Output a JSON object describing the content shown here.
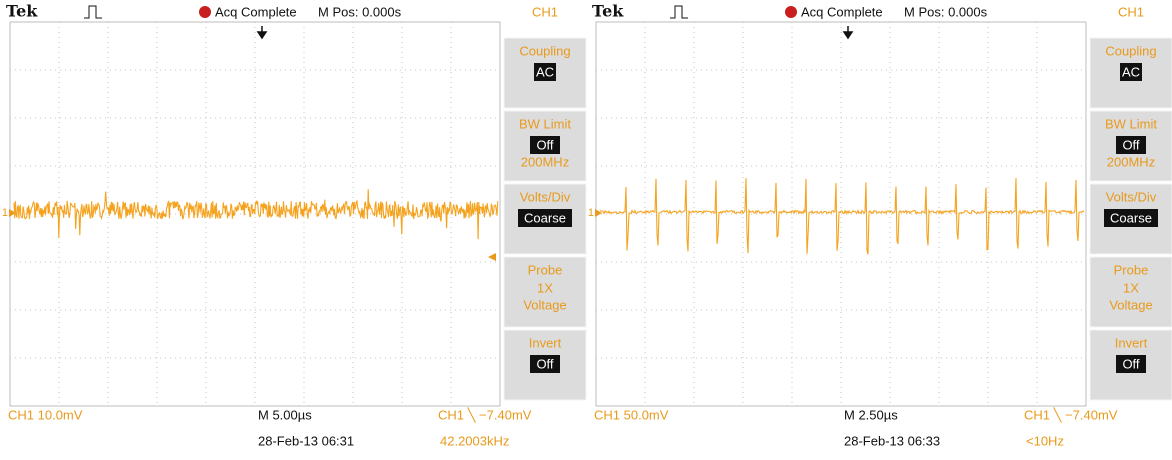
{
  "panels": [
    {
      "header": {
        "brand": "Tek",
        "status": "Acq Complete",
        "position": "M Pos: 0.000s",
        "channel": "CH1"
      },
      "channel_marker": "1",
      "menu": [
        {
          "label": "Coupling",
          "value": "AC"
        },
        {
          "label": "BW Limit",
          "value": "Off",
          "extra": [
            "200MHz"
          ]
        },
        {
          "label": "Volts/Div",
          "value": "Coarse"
        },
        {
          "label": "Probe",
          "extra": [
            "1X",
            "Voltage"
          ]
        },
        {
          "label": "Invert",
          "value": "Off"
        }
      ],
      "footer": {
        "scale": "CH1  10.0mV",
        "timebase": "M 5.00µs",
        "trigger": "CH1 ╲ −7.40mV",
        "date": "28-Feb-13 06:31",
        "frequency": "42.2003kHz"
      }
    },
    {
      "header": {
        "brand": "Tek",
        "status": "Acq Complete",
        "position": "M Pos: 0.000s",
        "channel": "CH1"
      },
      "channel_marker": "1",
      "menu": [
        {
          "label": "Coupling",
          "value": "AC"
        },
        {
          "label": "BW Limit",
          "value": "Off",
          "extra": [
            "200MHz"
          ]
        },
        {
          "label": "Volts/Div",
          "value": "Coarse"
        },
        {
          "label": "Probe",
          "extra": [
            "1X",
            "Voltage"
          ]
        },
        {
          "label": "Invert",
          "value": "Off"
        }
      ],
      "footer": {
        "scale": "CH1  50.0mV",
        "timebase": "M 2.50µs",
        "trigger": "CH1 ╲ −7.40mV",
        "date": "28-Feb-13 06:33",
        "frequency": "<10Hz"
      }
    }
  ]
}
